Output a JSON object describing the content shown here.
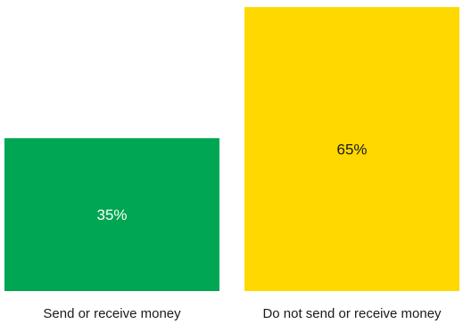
{
  "chart_data": {
    "type": "bar",
    "categories": [
      "Send or receive money",
      "Do not send or receive money"
    ],
    "values": [
      35,
      65
    ],
    "value_labels": [
      "35%",
      "65%"
    ],
    "colors": [
      "#00A651",
      "#FFD800"
    ],
    "label_colors": [
      "#ffffff",
      "#1a1a1a"
    ],
    "ylim": [
      0,
      65
    ],
    "grid": false,
    "axes_visible": false,
    "legend": "none"
  }
}
